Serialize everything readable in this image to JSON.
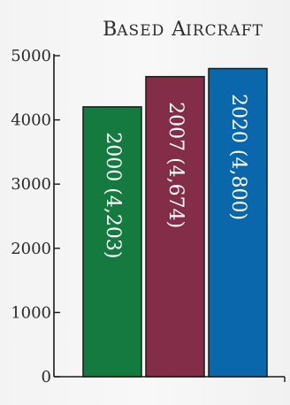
{
  "chart_data": {
    "type": "bar",
    "title": "Based Aircraft",
    "title_caps": {
      "first_b": "B",
      "rest_b": "ASED",
      "first_a": "A",
      "rest_a": "IRCRAFT"
    },
    "categories": [
      "2000",
      "2007",
      "2020"
    ],
    "values": [
      4203,
      4674,
      4800
    ],
    "bar_labels": [
      "2000 (4,203)",
      "2007 (4,674)",
      "2020 (4,800)"
    ],
    "bar_colors": [
      "#157a3f",
      "#832d48",
      "#0b67ac"
    ],
    "yticks": [
      0,
      1000,
      2000,
      3000,
      4000,
      5000
    ],
    "ytick_labels": [
      "0",
      "1000",
      "2000",
      "3000",
      "4000",
      "5000"
    ],
    "ylim": [
      0,
      5000
    ],
    "grid": false,
    "legend": "none",
    "xlabel": "",
    "ylabel": ""
  }
}
